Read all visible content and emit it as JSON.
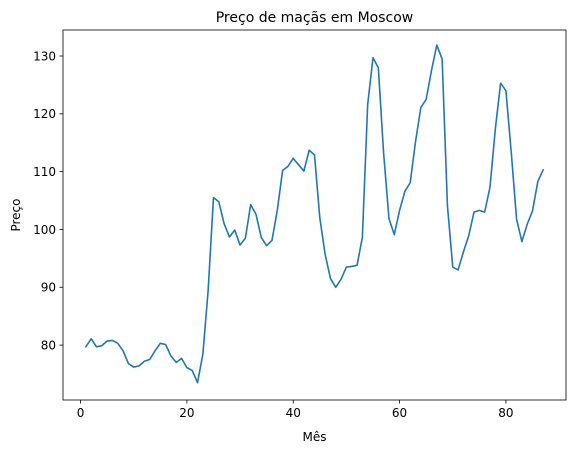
{
  "chart_data": {
    "type": "line",
    "title": "Preço de maçãs em Moscow",
    "xlabel": "Mês",
    "ylabel": "Preço",
    "xlim": [
      -3.3,
      91.3
    ],
    "ylim": [
      70.5,
      134.5
    ],
    "xticks": [
      0,
      20,
      40,
      60,
      80
    ],
    "yticks": [
      80,
      90,
      100,
      110,
      120,
      130
    ],
    "grid": false,
    "legend": "none",
    "series": [
      {
        "color": "#1f77b4",
        "x": [
          1,
          2,
          3,
          4,
          5,
          6,
          7,
          8,
          9,
          10,
          11,
          12,
          13,
          14,
          15,
          16,
          17,
          18,
          19,
          20,
          21,
          22,
          23,
          24,
          25,
          26,
          27,
          28,
          29,
          30,
          31,
          32,
          33,
          34,
          35,
          36,
          37,
          38,
          39,
          40,
          41,
          42,
          43,
          44,
          45,
          46,
          47,
          48,
          49,
          50,
          51,
          52,
          53,
          54,
          55,
          56,
          57,
          58,
          59,
          60,
          61,
          62,
          63,
          64,
          65,
          66,
          67,
          68,
          69,
          70,
          71,
          72,
          73,
          74,
          75,
          76,
          77,
          78,
          79,
          80,
          81,
          82,
          83,
          84,
          85,
          86,
          87
        ],
        "values": [
          79.7,
          81.1,
          79.7,
          79.9,
          80.7,
          80.8,
          80.3,
          79.0,
          76.8,
          76.2,
          76.4,
          77.2,
          77.5,
          79.0,
          80.3,
          80.1,
          78.1,
          77.0,
          77.7,
          76.1,
          75.6,
          73.5,
          78.4,
          89.5,
          105.5,
          104.8,
          101.0,
          98.7,
          99.9,
          97.3,
          98.5,
          104.3,
          102.6,
          98.6,
          97.2,
          98.1,
          103.3,
          110.2,
          110.9,
          112.3,
          111.2,
          110.1,
          113.7,
          112.9,
          102.0,
          95.7,
          91.5,
          90.0,
          91.4,
          93.5,
          93.6,
          93.8,
          98.6,
          121.6,
          129.7,
          128.0,
          113.2,
          101.9,
          99.1,
          103.3,
          106.6,
          108.1,
          115.2,
          121.1,
          122.5,
          127.5,
          131.9,
          129.5,
          104.1,
          93.5,
          93.0,
          96.1,
          98.9,
          103.0,
          103.3,
          103.0,
          107.3,
          117.3,
          125.3,
          124.0,
          113.4,
          101.8,
          97.9,
          100.9,
          103.2,
          108.3,
          110.3
        ]
      }
    ]
  }
}
